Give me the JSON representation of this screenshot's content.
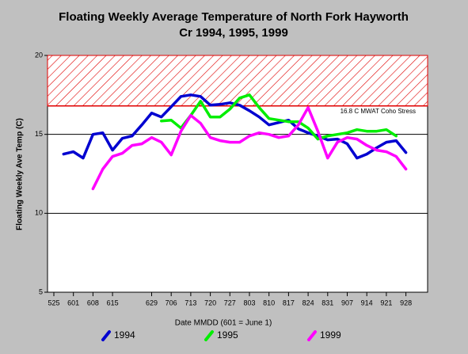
{
  "chart_data": {
    "type": "line",
    "title_lines": [
      "Floating Weekly Average Temperature of North Fork Hayworth",
      "Cr 1994, 1995, 1999"
    ],
    "x_label": "Date MMDD (601 = June 1)",
    "y_label": "Floating Weekly Ave Temp (C)",
    "categories": [
      "525",
      null,
      "601",
      null,
      "608",
      null,
      "615",
      null,
      null,
      null,
      "629",
      null,
      "706",
      null,
      "713",
      null,
      "720",
      null,
      "727",
      null,
      "803",
      null,
      "810",
      null,
      "817",
      null,
      "824",
      null,
      "831",
      null,
      "907",
      null,
      "914",
      null,
      "921",
      null,
      "928"
    ],
    "ylim": [
      5,
      20
    ],
    "yticks": [
      5,
      10,
      15,
      20
    ],
    "grid_values": [
      10,
      15
    ],
    "threshold": {
      "value": 16.8,
      "label": "16.8 C MWAT Coho Stress",
      "color": "#e00000"
    },
    "series": [
      {
        "name": "1994",
        "color": "#0000d0",
        "values": [
          null,
          13.75,
          13.9,
          13.5,
          15.0,
          15.1,
          14.0,
          14.75,
          14.9,
          15.6,
          16.35,
          16.1,
          16.75,
          17.4,
          17.5,
          17.4,
          16.85,
          16.9,
          17.0,
          16.85,
          16.5,
          16.1,
          15.6,
          15.75,
          15.9,
          15.35,
          15.1,
          14.9,
          14.65,
          14.7,
          14.4,
          13.5,
          13.75,
          14.15,
          14.5,
          14.6,
          13.85
        ]
      },
      {
        "name": "1995",
        "color": "#00ee00",
        "values": [
          null,
          null,
          null,
          null,
          null,
          null,
          null,
          null,
          null,
          null,
          null,
          15.85,
          15.9,
          15.4,
          16.2,
          17.1,
          16.1,
          16.1,
          16.6,
          17.3,
          17.5,
          16.7,
          16.0,
          15.9,
          15.8,
          15.8,
          15.4,
          14.7,
          14.9,
          15.0,
          15.1,
          15.3,
          15.2,
          15.2,
          15.3,
          14.9,
          null
        ]
      },
      {
        "name": "1999",
        "color": "#ff00ff",
        "values": [
          null,
          null,
          null,
          null,
          11.55,
          12.8,
          13.6,
          13.8,
          14.3,
          14.4,
          14.8,
          14.5,
          13.7,
          15.2,
          16.2,
          15.7,
          14.8,
          14.6,
          14.5,
          14.5,
          14.9,
          15.1,
          15.0,
          14.8,
          14.9,
          15.6,
          16.7,
          15.2,
          13.5,
          14.5,
          14.8,
          14.7,
          14.3,
          14.0,
          13.9,
          13.6,
          12.8
        ]
      }
    ]
  }
}
